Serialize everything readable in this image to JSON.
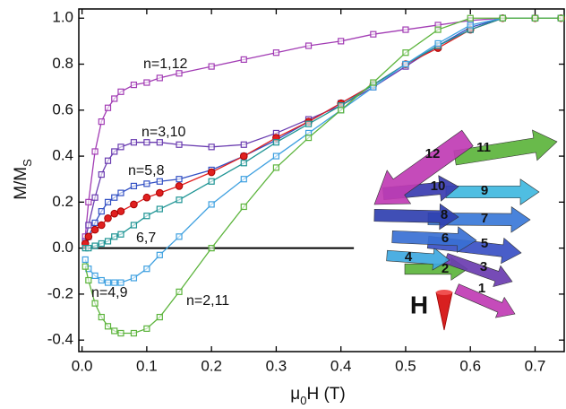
{
  "chart_data": {
    "type": "line",
    "x_label_parts": [
      "μ",
      "0",
      "H (T)"
    ],
    "y_label_parts": [
      "M/M",
      "S"
    ],
    "x": [
      0.005,
      0.01,
      0.02,
      0.03,
      0.04,
      0.05,
      0.06,
      0.08,
      0.1,
      0.12,
      0.15,
      0.2,
      0.25,
      0.3,
      0.35,
      0.4,
      0.45,
      0.5,
      0.55,
      0.6,
      0.65,
      0.7,
      0.74
    ],
    "series": [
      {
        "name": "n=1,12",
        "color": "#a23cb4",
        "marker": "square",
        "values": [
          0.05,
          0.2,
          0.42,
          0.55,
          0.61,
          0.65,
          0.68,
          0.71,
          0.72,
          0.74,
          0.76,
          0.79,
          0.82,
          0.85,
          0.88,
          0.9,
          0.93,
          0.95,
          0.97,
          0.99,
          1.0,
          1.0,
          1.0
        ]
      },
      {
        "name": "n=3,10",
        "color": "#6a3cb0",
        "marker": "square",
        "values": [
          0.03,
          0.1,
          0.22,
          0.32,
          0.38,
          0.42,
          0.44,
          0.46,
          0.46,
          0.46,
          0.45,
          0.44,
          0.45,
          0.5,
          0.56,
          0.62,
          0.7,
          0.79,
          0.88,
          0.95,
          1.0,
          1.0,
          1.0
        ]
      },
      {
        "name": "n=5,8",
        "color": "#3250c4",
        "marker": "square",
        "values": [
          0.02,
          0.05,
          0.11,
          0.16,
          0.2,
          0.22,
          0.24,
          0.27,
          0.28,
          0.29,
          0.3,
          0.34,
          0.4,
          0.47,
          0.55,
          0.63,
          0.71,
          0.8,
          0.88,
          0.96,
          1.0,
          1.0,
          1.0
        ]
      },
      {
        "color": "#e02020",
        "marker": "circle",
        "values": [
          0.02,
          0.05,
          0.08,
          0.1,
          0.13,
          0.15,
          0.16,
          0.19,
          0.22,
          0.24,
          0.27,
          0.33,
          0.4,
          0.48,
          0.55,
          0.63,
          0.71,
          0.8,
          0.87,
          0.95,
          1.0,
          1.0,
          1.0
        ]
      },
      {
        "name": "6,7",
        "color": "#1e9494",
        "marker": "square",
        "values": [
          0.0,
          0.0,
          0.01,
          0.02,
          0.03,
          0.05,
          0.06,
          0.1,
          0.14,
          0.17,
          0.21,
          0.29,
          0.37,
          0.46,
          0.54,
          0.62,
          0.71,
          0.8,
          0.88,
          0.95,
          1.0,
          1.0,
          1.0
        ]
      },
      {
        "name": "n=4,9",
        "color": "#3ea0e0",
        "marker": "square",
        "values": [
          -0.05,
          -0.09,
          -0.12,
          -0.14,
          -0.15,
          -0.15,
          -0.15,
          -0.13,
          -0.09,
          -0.03,
          0.05,
          0.19,
          0.3,
          0.4,
          0.5,
          0.6,
          0.7,
          0.8,
          0.89,
          0.97,
          1.0,
          1.0,
          1.0
        ]
      },
      {
        "name": "n=2,11",
        "color": "#5cb43c",
        "marker": "square",
        "values": [
          -0.08,
          -0.14,
          -0.24,
          -0.3,
          -0.34,
          -0.36,
          -0.37,
          -0.37,
          -0.35,
          -0.3,
          -0.19,
          0.0,
          0.18,
          0.35,
          0.48,
          0.6,
          0.72,
          0.85,
          0.95,
          1.0,
          1.0,
          1.0,
          1.0
        ]
      }
    ],
    "reference_line": {
      "y": 0,
      "x": [
        0,
        0.42
      ],
      "color": "#000000"
    },
    "xlim": [
      -0.005,
      0.745
    ],
    "ylim": [
      -0.45,
      1.04
    ],
    "xticks": [
      {
        "value": 0,
        "label": "0.0"
      },
      0.1,
      0.2,
      0.3,
      0.4,
      0.5,
      0.6,
      0.7
    ],
    "yticks": [
      -0.4,
      -0.2,
      {
        "value": 0,
        "label": "0.0"
      },
      0.2,
      0.4,
      0.6,
      0.8,
      {
        "value": 1,
        "label": "1.0"
      }
    ],
    "inset": {
      "spin_labels": [
        "1",
        "2",
        "3",
        "4",
        "5",
        "6",
        "7",
        "8",
        "9",
        "10",
        "11",
        "12"
      ],
      "field_label": "H"
    }
  }
}
